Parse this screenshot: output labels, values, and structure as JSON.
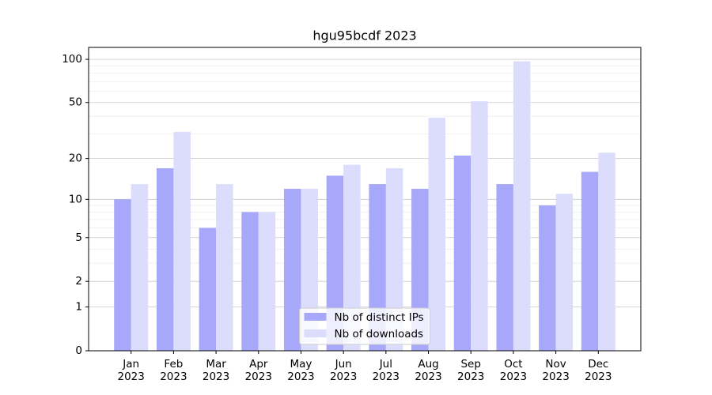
{
  "chart_data": {
    "type": "bar",
    "title": "hgu95bcdf 2023",
    "categories": [
      "Jan\n2023",
      "Feb\n2023",
      "Mar\n2023",
      "Apr\n2023",
      "May\n2023",
      "Jun\n2023",
      "Jul\n2023",
      "Aug\n2023",
      "Sep\n2023",
      "Oct\n2023",
      "Nov\n2023",
      "Dec\n2023"
    ],
    "series": [
      {
        "name": "Nb of distinct IPs",
        "color": "#a8a8fa",
        "values": [
          10,
          17,
          6,
          8,
          12,
          15,
          13,
          12,
          21,
          13,
          9,
          16
        ]
      },
      {
        "name": "Nb of downloads",
        "color": "#dcdcfc",
        "values": [
          13,
          31,
          13,
          8,
          12,
          18,
          17,
          39,
          51,
          97,
          11,
          22
        ]
      }
    ],
    "y_scale": "log1p",
    "ylim": [
      0,
      121
    ],
    "yticks": [
      0,
      1,
      2,
      5,
      10,
      20,
      50,
      100
    ],
    "yticks_minor": [
      3,
      4,
      6,
      7,
      8,
      9,
      30,
      40,
      60,
      70,
      80,
      90
    ],
    "grid": true,
    "legend": "lower center"
  }
}
